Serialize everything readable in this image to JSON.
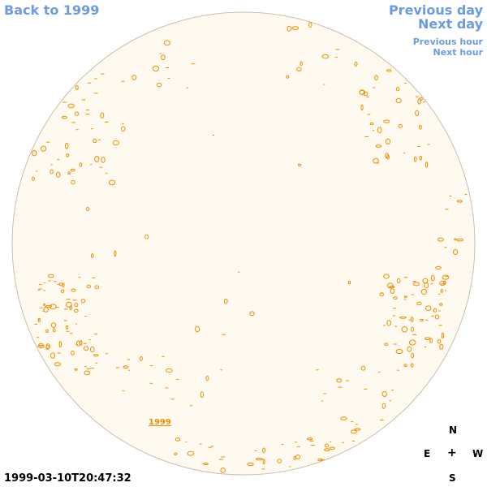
{
  "nav": {
    "back": "Back to 1999",
    "previous_day": "Previous day",
    "next_day": "Next day",
    "previous_hour": "Previous hour",
    "next_hour": "Next hour"
  },
  "map": {
    "year_label": "1999",
    "timestamp": "1999-03-10T20:47:32"
  },
  "compass": {
    "n": "N",
    "e": "E",
    "plus": "+",
    "w": "W",
    "s": "S"
  },
  "colors": {
    "link": "#6c9be2",
    "disk_fill": "#fffaf0",
    "disk_outline": "#c8bfae",
    "contours": "#f28c00"
  }
}
